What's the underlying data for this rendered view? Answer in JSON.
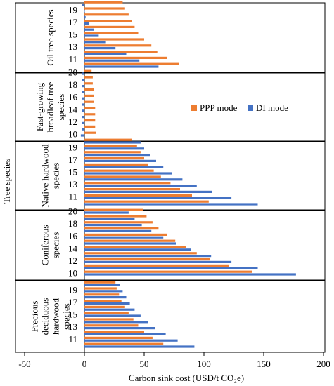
{
  "chart_data": {
    "type": "bar",
    "orientation": "horizontal",
    "xlabel": "Carbon sink cost (USD/t CO₂e)",
    "ylabel": "Tree species",
    "xlim": [
      -50,
      200
    ],
    "xticks": [
      "-50",
      "0",
      "50",
      "100",
      "150",
      "200"
    ],
    "grid": false,
    "legend_position": "right of panel 2",
    "colors": {
      "ppp": "#ED7D31",
      "di": "#4472C4"
    },
    "legend": [
      {
        "key": "ppp",
        "label": "PPP mode"
      },
      {
        "key": "di",
        "label": "DI mode"
      }
    ],
    "categories": [
      "10",
      "11",
      "12",
      "13",
      "14",
      "15",
      "16",
      "17",
      "18",
      "19",
      "20"
    ],
    "panels": [
      {
        "label": "Oil tree species",
        "label_lines": [
          "Oil tree species"
        ],
        "tick_labels": [
          "11",
          "13",
          "15",
          "17",
          "19"
        ],
        "ppp": [
          79,
          69,
          61,
          56,
          50,
          45,
          42,
          40,
          37,
          34,
          32
        ],
        "di": [
          62,
          46,
          35,
          26,
          18,
          12,
          8,
          4,
          1,
          0,
          -2
        ]
      },
      {
        "label": "Fast-growing broadleaf tree species",
        "label_lines": [
          "Fast-growing",
          "broadleaf tree",
          "species"
        ],
        "tick_labels": [
          "10",
          "12",
          "14",
          "16",
          "18",
          "20"
        ],
        "ppp": [
          10,
          9,
          9,
          9,
          9,
          8,
          8,
          8,
          7,
          7,
          6
        ],
        "di": [
          -3,
          -2,
          -2,
          -2,
          -2,
          -2,
          -2,
          -2,
          -2,
          -2,
          -2
        ]
      },
      {
        "label": "Native hardwood species",
        "label_lines": [
          "Native hardwood",
          "species"
        ],
        "tick_labels": [
          "11",
          "13",
          "15",
          "17",
          "19"
        ],
        "ppp": [
          104,
          90,
          80,
          72,
          64,
          58,
          53,
          50,
          47,
          44,
          40
        ],
        "di": [
          145,
          123,
          107,
          94,
          82,
          73,
          66,
          60,
          55,
          50,
          47
        ]
      },
      {
        "label": "Coniferous species",
        "label_lines": [
          "Coniferous",
          "species"
        ],
        "tick_labels": [
          "10",
          "12",
          "14",
          "16",
          "18",
          "20"
        ],
        "ppp": [
          140,
          121,
          105,
          94,
          85,
          76,
          69,
          62,
          57,
          52,
          49
        ],
        "di": [
          177,
          145,
          123,
          106,
          89,
          77,
          66,
          56,
          48,
          42,
          37
        ]
      },
      {
        "label": "Precious deciduous hardwood species",
        "label_lines": [
          "Precious",
          "deciduous",
          "hardwood",
          "species"
        ],
        "tick_labels": [
          "11",
          "13",
          "15",
          "17",
          "19"
        ],
        "ppp": [
          66,
          57,
          50,
          45,
          41,
          37,
          34,
          31,
          29,
          27,
          26
        ],
        "di": [
          92,
          78,
          68,
          59,
          53,
          47,
          42,
          38,
          35,
          32,
          30
        ]
      }
    ]
  }
}
